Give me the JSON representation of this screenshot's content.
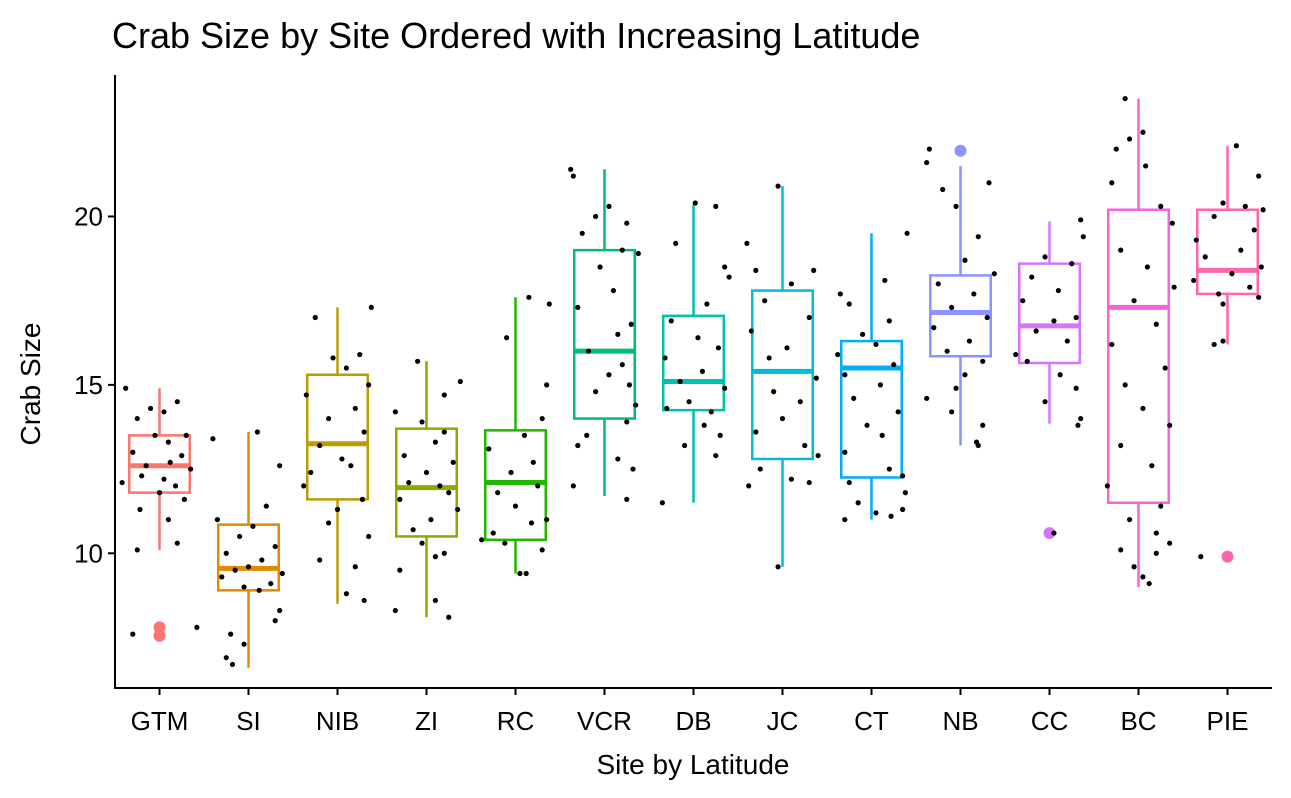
{
  "chart_data": {
    "type": "box",
    "title": "Crab Size by Site Ordered with Increasing Latitude",
    "xlabel": "Site by Latitude",
    "ylabel": "Crab Size",
    "ylim": [
      6.0,
      24.2
    ],
    "yticks": [
      10,
      15,
      20
    ],
    "grid": false,
    "legend": "none",
    "categories": [
      "GTM",
      "SI",
      "NIB",
      "ZI",
      "RC",
      "VCR",
      "DB",
      "JC",
      "CT",
      "NB",
      "CC",
      "BC",
      "PIE"
    ],
    "colors": [
      "#F8766D",
      "#E18A00",
      "#BE9C00",
      "#8CAB00",
      "#24B700",
      "#00BE70",
      "#00C1AB",
      "#00BBDA",
      "#00ACFC",
      "#8B93FF",
      "#D575FE",
      "#F962DD",
      "#FF65AC"
    ],
    "boxes": [
      {
        "q1": 11.8,
        "median": 12.6,
        "q3": 13.5,
        "whisker_low": 10.1,
        "whisker_high": 14.9,
        "outliers": [
          7.8,
          7.55
        ]
      },
      {
        "q1": 8.9,
        "median": 9.55,
        "q3": 10.85,
        "whisker_low": 6.6,
        "whisker_high": 13.6,
        "outliers": []
      },
      {
        "q1": 11.6,
        "median": 13.25,
        "q3": 15.3,
        "whisker_low": 8.5,
        "whisker_high": 17.3,
        "outliers": []
      },
      {
        "q1": 10.5,
        "median": 11.95,
        "q3": 13.7,
        "whisker_low": 8.1,
        "whisker_high": 15.7,
        "outliers": []
      },
      {
        "q1": 10.4,
        "median": 12.1,
        "q3": 13.65,
        "whisker_low": 9.4,
        "whisker_high": 17.6,
        "outliers": []
      },
      {
        "q1": 14.0,
        "median": 16.0,
        "q3": 19.0,
        "whisker_low": 11.7,
        "whisker_high": 21.4,
        "outliers": []
      },
      {
        "q1": 14.25,
        "median": 15.1,
        "q3": 17.05,
        "whisker_low": 11.5,
        "whisker_high": 20.35,
        "outliers": []
      },
      {
        "q1": 12.8,
        "median": 15.4,
        "q3": 17.8,
        "whisker_low": 9.6,
        "whisker_high": 20.9,
        "outliers": []
      },
      {
        "q1": 12.25,
        "median": 15.5,
        "q3": 16.3,
        "whisker_low": 11.0,
        "whisker_high": 19.5,
        "outliers": []
      },
      {
        "q1": 15.85,
        "median": 17.15,
        "q3": 18.25,
        "whisker_low": 13.2,
        "whisker_high": 21.5,
        "outliers": [
          21.95
        ]
      },
      {
        "q1": 15.65,
        "median": 16.75,
        "q3": 18.6,
        "whisker_low": 13.85,
        "whisker_high": 19.85,
        "outliers": [
          10.6
        ]
      },
      {
        "q1": 11.5,
        "median": 17.3,
        "q3": 20.2,
        "whisker_low": 9.0,
        "whisker_high": 23.5,
        "outliers": []
      },
      {
        "q1": 17.7,
        "median": 18.4,
        "q3": 20.2,
        "whisker_low": 16.2,
        "whisker_high": 22.1,
        "outliers": [
          9.9
        ]
      }
    ],
    "jitter_points": [
      [
        [
          14.9,
          -0.38
        ],
        [
          14.5,
          0.2
        ],
        [
          14.3,
          -0.1
        ],
        [
          14.2,
          0.05
        ],
        [
          14.0,
          -0.25
        ],
        [
          13.5,
          0.3
        ],
        [
          13.5,
          -0.05
        ],
        [
          13.3,
          0.1
        ],
        [
          13.0,
          -0.3
        ],
        [
          12.9,
          0.25
        ],
        [
          12.7,
          0.12
        ],
        [
          12.6,
          -0.15
        ],
        [
          12.5,
          0.35
        ],
        [
          12.3,
          -0.2
        ],
        [
          12.2,
          0.05
        ],
        [
          12.1,
          -0.42
        ],
        [
          12.0,
          0.18
        ],
        [
          11.8,
          0.0
        ],
        [
          11.6,
          0.28
        ],
        [
          11.3,
          -0.22
        ],
        [
          11.0,
          0.1
        ],
        [
          10.3,
          0.2
        ],
        [
          10.1,
          -0.25
        ],
        [
          7.8,
          0.42
        ],
        [
          7.6,
          -0.3
        ]
      ],
      [
        [
          13.6,
          0.1
        ],
        [
          13.4,
          -0.4
        ],
        [
          12.6,
          0.35
        ],
        [
          11.4,
          0.2
        ],
        [
          11.0,
          -0.35
        ],
        [
          10.8,
          0.05
        ],
        [
          10.5,
          -0.1
        ],
        [
          10.2,
          0.3
        ],
        [
          10.0,
          -0.25
        ],
        [
          9.8,
          0.15
        ],
        [
          9.6,
          0.0
        ],
        [
          9.5,
          -0.15
        ],
        [
          9.4,
          0.38
        ],
        [
          9.3,
          -0.3
        ],
        [
          9.1,
          0.25
        ],
        [
          9.0,
          -0.05
        ],
        [
          8.9,
          0.12
        ],
        [
          8.3,
          0.35
        ],
        [
          8.0,
          0.3
        ],
        [
          7.6,
          -0.2
        ],
        [
          7.3,
          -0.05
        ],
        [
          6.9,
          -0.25
        ],
        [
          6.7,
          -0.18
        ]
      ],
      [
        [
          17.3,
          0.38
        ],
        [
          17.0,
          -0.25
        ],
        [
          15.9,
          0.25
        ],
        [
          15.8,
          -0.05
        ],
        [
          15.5,
          0.1
        ],
        [
          15.0,
          0.35
        ],
        [
          14.7,
          -0.35
        ],
        [
          14.3,
          0.2
        ],
        [
          14.0,
          -0.1
        ],
        [
          13.6,
          0.3
        ],
        [
          13.2,
          -0.2
        ],
        [
          12.8,
          0.05
        ],
        [
          12.6,
          0.15
        ],
        [
          12.4,
          -0.3
        ],
        [
          12.0,
          -0.38
        ],
        [
          11.6,
          0.28
        ],
        [
          11.3,
          0.0
        ],
        [
          10.9,
          -0.1
        ],
        [
          10.5,
          0.35
        ],
        [
          9.8,
          -0.2
        ],
        [
          9.6,
          0.2
        ],
        [
          8.8,
          0.1
        ],
        [
          8.6,
          0.3
        ]
      ],
      [
        [
          15.7,
          -0.1
        ],
        [
          15.1,
          0.38
        ],
        [
          14.7,
          0.2
        ],
        [
          14.2,
          -0.35
        ],
        [
          13.9,
          -0.05
        ],
        [
          13.6,
          0.2
        ],
        [
          13.3,
          0.1
        ],
        [
          12.9,
          -0.25
        ],
        [
          12.7,
          0.3
        ],
        [
          12.4,
          0.0
        ],
        [
          12.1,
          -0.2
        ],
        [
          12.0,
          0.15
        ],
        [
          11.8,
          0.25
        ],
        [
          11.6,
          -0.3
        ],
        [
          11.3,
          0.35
        ],
        [
          11.0,
          0.05
        ],
        [
          10.7,
          -0.15
        ],
        [
          10.3,
          -0.05
        ],
        [
          10.0,
          0.2
        ],
        [
          9.9,
          0.1
        ],
        [
          9.5,
          -0.3
        ],
        [
          8.6,
          0.1
        ],
        [
          8.3,
          -0.35
        ],
        [
          8.1,
          0.25
        ]
      ],
      [
        [
          17.6,
          0.15
        ],
        [
          17.4,
          0.38
        ],
        [
          16.4,
          -0.1
        ],
        [
          15.0,
          0.35
        ],
        [
          14.0,
          0.3
        ],
        [
          13.5,
          0.1
        ],
        [
          13.1,
          -0.3
        ],
        [
          12.7,
          0.2
        ],
        [
          12.4,
          -0.05
        ],
        [
          12.0,
          0.25
        ],
        [
          11.8,
          -0.2
        ],
        [
          11.4,
          0.0
        ],
        [
          11.0,
          0.35
        ],
        [
          10.9,
          0.18
        ],
        [
          10.6,
          -0.25
        ],
        [
          10.4,
          -0.38
        ],
        [
          10.3,
          -0.12
        ],
        [
          10.1,
          0.3
        ],
        [
          9.4,
          0.05
        ],
        [
          9.4,
          0.12
        ]
      ],
      [
        [
          21.4,
          -0.38
        ],
        [
          21.2,
          -0.35
        ],
        [
          20.3,
          0.05
        ],
        [
          20.0,
          -0.1
        ],
        [
          19.8,
          0.25
        ],
        [
          19.5,
          -0.25
        ],
        [
          19.0,
          0.2
        ],
        [
          18.9,
          0.38
        ],
        [
          18.5,
          -0.05
        ],
        [
          17.8,
          0.1
        ],
        [
          17.3,
          -0.3
        ],
        [
          16.8,
          0.3
        ],
        [
          16.5,
          0.15
        ],
        [
          16.0,
          -0.18
        ],
        [
          15.6,
          0.2
        ],
        [
          15.3,
          0.05
        ],
        [
          15.0,
          0.28
        ],
        [
          14.8,
          -0.1
        ],
        [
          14.4,
          0.35
        ],
        [
          13.9,
          0.25
        ],
        [
          13.5,
          -0.2
        ],
        [
          13.2,
          -0.3
        ],
        [
          12.8,
          0.15
        ],
        [
          12.5,
          0.32
        ],
        [
          12.0,
          -0.35
        ],
        [
          11.6,
          0.25
        ]
      ],
      [
        [
          20.4,
          0.02
        ],
        [
          20.3,
          0.25
        ],
        [
          19.2,
          -0.2
        ],
        [
          18.5,
          0.35
        ],
        [
          18.2,
          0.4
        ],
        [
          17.4,
          0.15
        ],
        [
          16.9,
          -0.25
        ],
        [
          16.4,
          0.05
        ],
        [
          16.1,
          0.28
        ],
        [
          15.8,
          -0.32
        ],
        [
          15.4,
          0.1
        ],
        [
          15.1,
          -0.15
        ],
        [
          14.9,
          0.35
        ],
        [
          14.5,
          -0.05
        ],
        [
          14.3,
          -0.3
        ],
        [
          14.2,
          0.2
        ],
        [
          13.8,
          0.12
        ],
        [
          13.5,
          0.3
        ],
        [
          13.2,
          -0.1
        ],
        [
          12.9,
          0.25
        ],
        [
          11.5,
          -0.35
        ]
      ],
      [
        [
          20.9,
          -0.05
        ],
        [
          19.2,
          -0.4
        ],
        [
          18.4,
          -0.3
        ],
        [
          18.4,
          0.35
        ],
        [
          18.0,
          0.1
        ],
        [
          17.5,
          -0.2
        ],
        [
          17.0,
          0.3
        ],
        [
          16.6,
          -0.35
        ],
        [
          16.1,
          0.05
        ],
        [
          15.8,
          -0.15
        ],
        [
          15.2,
          0.38
        ],
        [
          14.8,
          -0.1
        ],
        [
          14.5,
          0.2
        ],
        [
          14.0,
          0.0
        ],
        [
          13.6,
          -0.3
        ],
        [
          13.2,
          0.25
        ],
        [
          12.9,
          0.4
        ],
        [
          12.5,
          -0.25
        ],
        [
          12.2,
          0.1
        ],
        [
          12.1,
          0.3
        ],
        [
          12.0,
          -0.38
        ],
        [
          9.6,
          -0.05
        ]
      ],
      [
        [
          19.5,
          0.4
        ],
        [
          18.1,
          0.15
        ],
        [
          17.7,
          -0.35
        ],
        [
          17.4,
          -0.25
        ],
        [
          16.9,
          0.2
        ],
        [
          16.5,
          -0.1
        ],
        [
          16.2,
          0.05
        ],
        [
          15.9,
          -0.38
        ],
        [
          15.6,
          0.25
        ],
        [
          15.3,
          -0.3
        ],
        [
          15.0,
          0.1
        ],
        [
          14.6,
          -0.2
        ],
        [
          14.2,
          0.3
        ],
        [
          13.8,
          -0.05
        ],
        [
          13.5,
          0.12
        ],
        [
          13.0,
          -0.3
        ],
        [
          12.5,
          0.2
        ],
        [
          12.3,
          0.35
        ],
        [
          12.1,
          -0.25
        ],
        [
          11.8,
          0.38
        ],
        [
          11.5,
          -0.15
        ],
        [
          11.2,
          0.05
        ],
        [
          11.0,
          -0.3
        ],
        [
          11.1,
          0.22
        ],
        [
          11.3,
          0.35
        ]
      ],
      [
        [
          22.0,
          -0.35
        ],
        [
          21.6,
          -0.38
        ],
        [
          21.0,
          0.32
        ],
        [
          20.8,
          -0.2
        ],
        [
          20.3,
          -0.05
        ],
        [
          19.4,
          0.2
        ],
        [
          18.7,
          0.05
        ],
        [
          18.3,
          0.38
        ],
        [
          18.0,
          -0.25
        ],
        [
          17.7,
          0.15
        ],
        [
          17.3,
          -0.1
        ],
        [
          17.0,
          0.3
        ],
        [
          16.7,
          -0.3
        ],
        [
          16.3,
          0.1
        ],
        [
          16.0,
          -0.15
        ],
        [
          15.7,
          0.25
        ],
        [
          15.3,
          0.05
        ],
        [
          14.9,
          -0.05
        ],
        [
          14.6,
          -0.38
        ],
        [
          14.2,
          -0.1
        ],
        [
          13.8,
          0.25
        ],
        [
          13.3,
          0.18
        ],
        [
          13.2,
          0.2
        ]
      ],
      [
        [
          19.9,
          0.35
        ],
        [
          19.4,
          0.38
        ],
        [
          18.8,
          -0.05
        ],
        [
          18.6,
          0.25
        ],
        [
          18.2,
          -0.2
        ],
        [
          17.8,
          0.1
        ],
        [
          17.5,
          -0.3
        ],
        [
          17.0,
          0.3
        ],
        [
          16.9,
          0.05
        ],
        [
          16.6,
          -0.15
        ],
        [
          16.3,
          0.2
        ],
        [
          15.9,
          -0.38
        ],
        [
          15.7,
          -0.25
        ],
        [
          15.3,
          0.12
        ],
        [
          14.9,
          0.3
        ],
        [
          14.5,
          -0.05
        ],
        [
          14.0,
          0.35
        ],
        [
          13.8,
          0.32
        ],
        [
          10.6,
          0.05
        ]
      ],
      [
        [
          23.5,
          -0.15
        ],
        [
          22.5,
          0.05
        ],
        [
          22.3,
          -0.1
        ],
        [
          22.0,
          -0.25
        ],
        [
          21.5,
          0.08
        ],
        [
          21.0,
          -0.3
        ],
        [
          20.3,
          0.25
        ],
        [
          19.8,
          0.38
        ],
        [
          19.0,
          -0.2
        ],
        [
          18.5,
          0.1
        ],
        [
          17.9,
          0.4
        ],
        [
          17.5,
          -0.05
        ],
        [
          16.8,
          0.2
        ],
        [
          16.2,
          -0.3
        ],
        [
          15.5,
          0.3
        ],
        [
          15.0,
          -0.15
        ],
        [
          14.3,
          0.05
        ],
        [
          13.8,
          0.35
        ],
        [
          13.2,
          -0.2
        ],
        [
          12.6,
          0.15
        ],
        [
          12.0,
          -0.35
        ],
        [
          11.4,
          0.25
        ],
        [
          11.0,
          -0.1
        ],
        [
          10.6,
          0.2
        ],
        [
          10.3,
          0.35
        ],
        [
          10.1,
          -0.2
        ],
        [
          10.0,
          0.2
        ],
        [
          9.6,
          -0.05
        ],
        [
          9.3,
          0.05
        ],
        [
          9.1,
          0.12
        ]
      ],
      [
        [
          22.1,
          0.1
        ],
        [
          21.2,
          0.35
        ],
        [
          20.4,
          -0.05
        ],
        [
          20.3,
          0.2
        ],
        [
          20.2,
          0.4
        ],
        [
          20.0,
          -0.15
        ],
        [
          19.6,
          0.3
        ],
        [
          19.3,
          -0.35
        ],
        [
          19.0,
          0.15
        ],
        [
          18.8,
          -0.25
        ],
        [
          18.5,
          0.38
        ],
        [
          18.3,
          0.05
        ],
        [
          18.1,
          -0.38
        ],
        [
          17.9,
          0.25
        ],
        [
          17.7,
          -0.1
        ],
        [
          17.6,
          0.35
        ],
        [
          17.4,
          -0.05
        ],
        [
          16.3,
          -0.05
        ],
        [
          16.2,
          -0.15
        ],
        [
          9.9,
          -0.3
        ]
      ]
    ]
  }
}
